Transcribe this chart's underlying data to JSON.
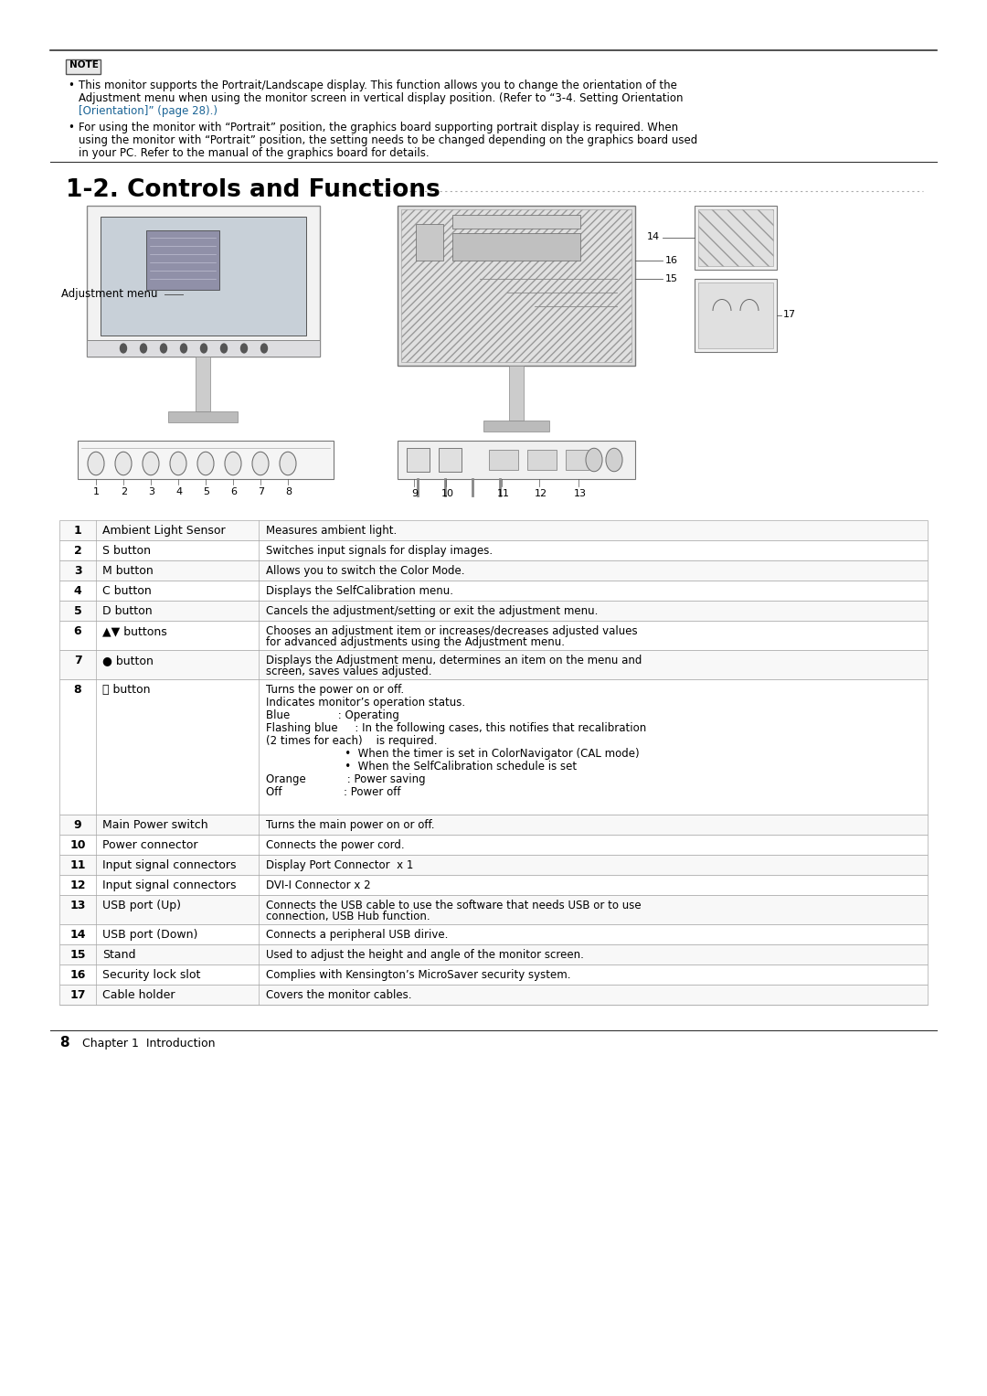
{
  "bg_color": "#ffffff",
  "note_bullets": [
    [
      "This monitor supports the Portrait/Landscape display. This function allows you to change the orientation of the Adjustment menu when using the monitor screen in vertical display position. (Refer to ",
      "“3-4. Setting Orientation [Orientation]” (page 28).",
      ")"
    ],
    "For using the monitor with “Portrait” position, the graphics board supporting portrait display is required. When using the monitor with “Portrait” position, the setting needs to be changed depending on the graphics board used in your PC. Refer to the manual of the graphics board for details."
  ],
  "section_title": "1-2. Controls and Functions",
  "table_rows": [
    {
      "num": "1",
      "name": "Ambient Light Sensor",
      "desc": "Measures ambient light."
    },
    {
      "num": "2",
      "name": "S button",
      "desc": "Switches input signals for display images."
    },
    {
      "num": "3",
      "name": "M button",
      "desc": "Allows you to switch the Color Mode."
    },
    {
      "num": "4",
      "name": "C button",
      "desc": "Displays the SelfCalibration menu."
    },
    {
      "num": "5",
      "name": "D button",
      "desc": "Cancels the adjustment/setting or exit the adjustment menu."
    },
    {
      "num": "6",
      "name": "▲▼ buttons",
      "desc": "Chooses an adjustment item or increases/decreases adjusted values for advanced adjustments using the Adjustment menu."
    },
    {
      "num": "7",
      "name": "● button",
      "desc": "Displays the Adjustment menu, determines an item on the menu screen, and saves values adjusted."
    },
    {
      "num": "8",
      "name": "⏻ button",
      "desc_lines": [
        "Turns the power on or off.",
        "Indicates monitor’s operation status.",
        "Blue              : Operating",
        "Flashing blue     : In the following cases, this notifies that recalibration",
        "(2 times for each)    is required.",
        "                       •  When the timer is set in ColorNavigator (CAL mode)",
        "                       •  When the SelfCalibration schedule is set",
        "Orange            : Power saving",
        "Off                  : Power off"
      ]
    },
    {
      "num": "9",
      "name": "Main Power switch",
      "desc": "Turns the main power on or off."
    },
    {
      "num": "10",
      "name": "Power connector",
      "desc": "Connects the power cord."
    },
    {
      "num": "11",
      "name": "Input signal connectors",
      "desc": "Display Port Connector  x 1"
    },
    {
      "num": "12",
      "name": "Input signal connectors",
      "desc": "DVI-I Connector x 2"
    },
    {
      "num": "13",
      "name": "USB port (Up)",
      "desc": "Connects the USB cable to use the software that needs USB connection, or to use USB Hub function."
    },
    {
      "num": "14",
      "name": "USB port (Down)",
      "desc": "Connects a peripheral USB dirive."
    },
    {
      "num": "15",
      "name": "Stand",
      "desc": "Used to adjust the height and angle of the monitor screen."
    },
    {
      "num": "16",
      "name": "Security lock slot",
      "desc": "Complies with Kensington’s MicroSaver security system."
    },
    {
      "num": "17",
      "name": "Cable holder",
      "desc": "Covers the monitor cables."
    }
  ],
  "link_color": "#1a6496",
  "table_border_color": "#aaaaaa",
  "num_col_bold": true
}
